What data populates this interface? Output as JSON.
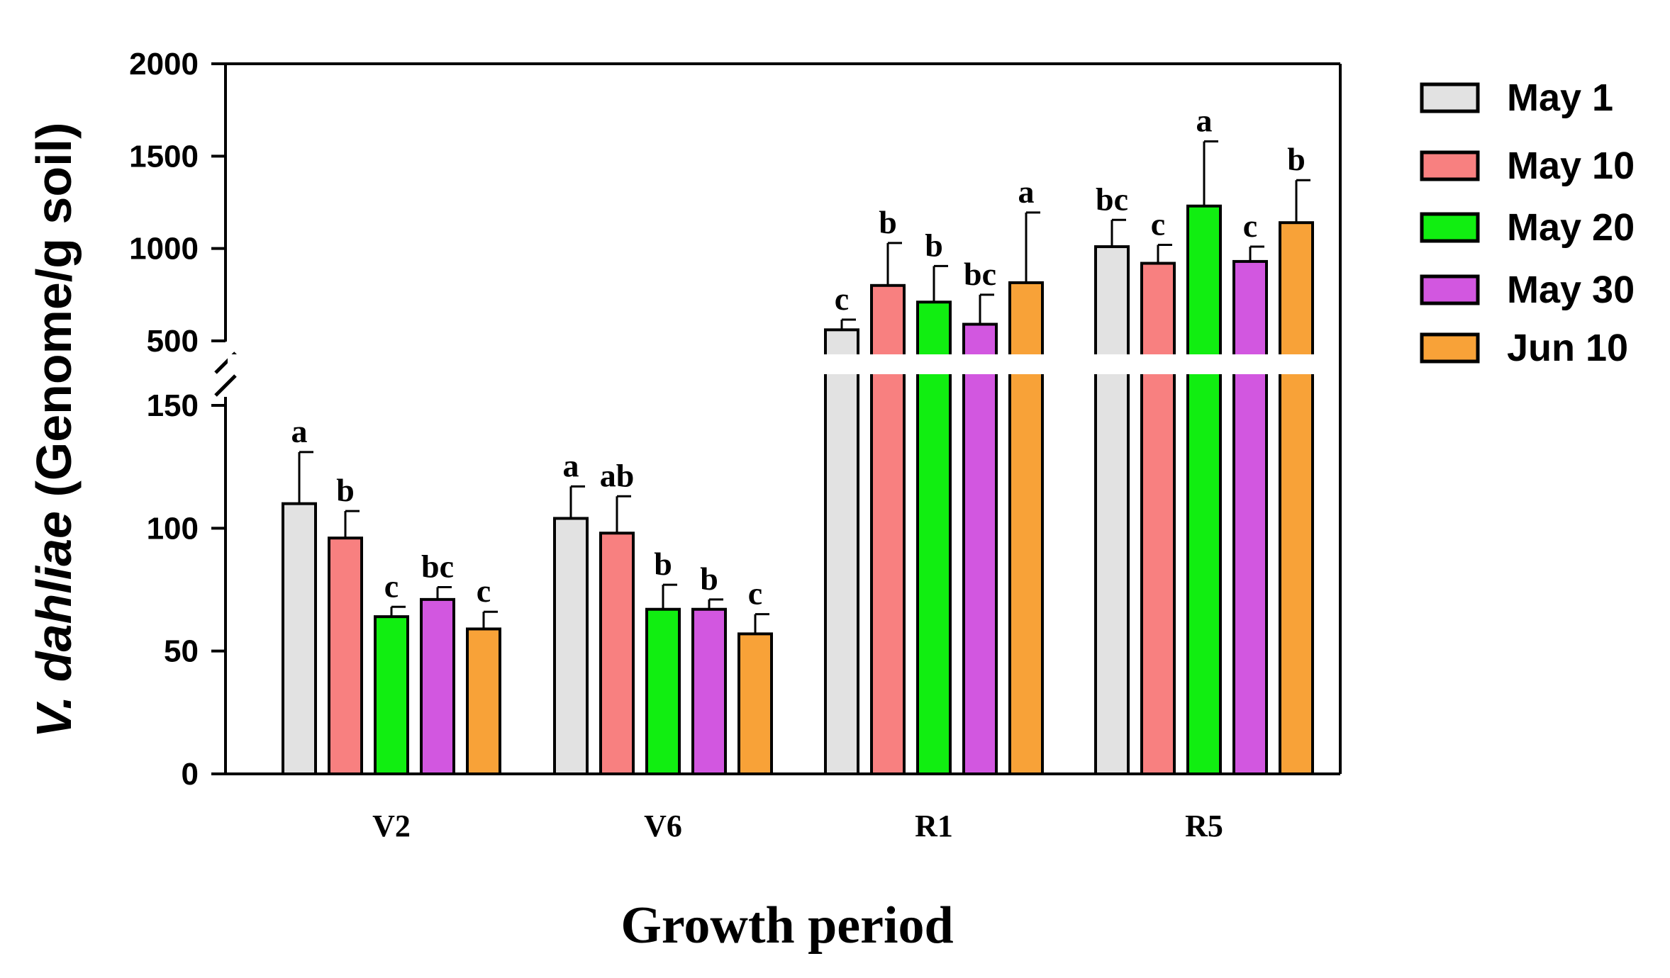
{
  "chart_data": {
    "type": "bar",
    "title": "",
    "xlabel": "Growth period",
    "ylabel_italic": "V. dahliae",
    "ylabel_rest": " (Genome/g soil)",
    "categories": [
      "V2",
      "V6",
      "R1",
      "R5"
    ],
    "broken_axis": true,
    "lower_ylim": [
      0,
      150
    ],
    "upper_ylim": [
      500,
      2000
    ],
    "lower_ticks": [
      "0",
      "50",
      "100",
      "150"
    ],
    "upper_ticks": [
      "500",
      "1000",
      "1500",
      "2000"
    ],
    "series": [
      {
        "name": "May 1",
        "color": "#e2e2e2",
        "values": [
          110,
          104,
          560,
          1010
        ],
        "errors": [
          21,
          13,
          55,
          145
        ],
        "letters": [
          "a",
          "a",
          "c",
          "bc"
        ]
      },
      {
        "name": "May 10",
        "color": "#f88080",
        "values": [
          96,
          98,
          800,
          920
        ],
        "errors": [
          11,
          15,
          230,
          100
        ],
        "letters": [
          "b",
          "ab",
          "b",
          "c"
        ]
      },
      {
        "name": "May 20",
        "color": "#11ee11",
        "values": [
          64,
          67,
          710,
          1230
        ],
        "errors": [
          4,
          10,
          195,
          350
        ],
        "letters": [
          "c",
          "b",
          "b",
          "a"
        ]
      },
      {
        "name": "May 30",
        "color": "#d257e0",
        "values": [
          71,
          67,
          590,
          930
        ],
        "errors": [
          5,
          4,
          160,
          80
        ],
        "letters": [
          "bc",
          "b",
          "bc",
          "c"
        ]
      },
      {
        "name": "Jun 10",
        "color": "#f8a238",
        "values": [
          59,
          57,
          815,
          1140
        ],
        "errors": [
          7,
          8,
          380,
          230
        ],
        "letters": [
          "c",
          "c",
          "a",
          "b"
        ]
      }
    ],
    "legend_position": "right"
  }
}
